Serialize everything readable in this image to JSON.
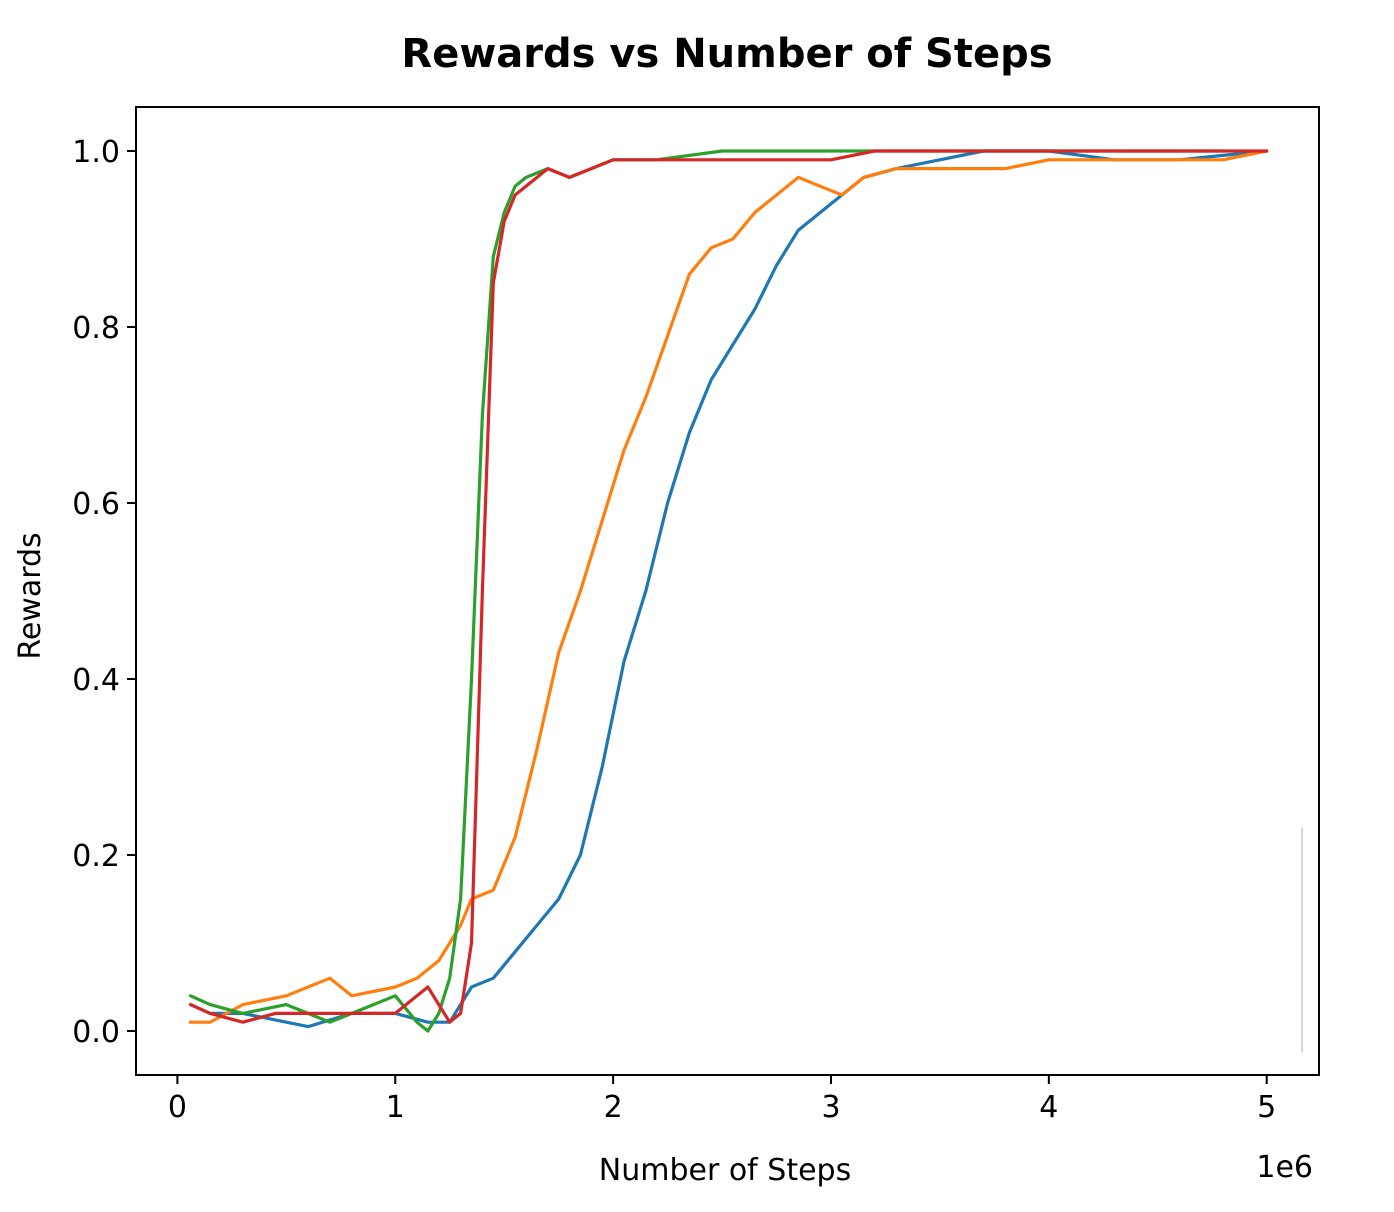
{
  "chart_data": {
    "type": "line",
    "title": "Rewards vs Number of Steps",
    "xlabel": "Number of Steps",
    "ylabel": "Rewards",
    "x_offset_label": "1e6",
    "xlim": [
      -0.19,
      5.24
    ],
    "ylim": [
      -0.05,
      1.05
    ],
    "x_ticks": [
      0,
      1,
      2,
      3,
      4,
      5
    ],
    "x_tick_labels": [
      "0",
      "1",
      "2",
      "3",
      "4",
      "5"
    ],
    "y_ticks": [
      0.0,
      0.2,
      0.4,
      0.6,
      0.8,
      1.0
    ],
    "y_tick_labels": [
      "0.0",
      "0.2",
      "0.4",
      "0.6",
      "0.8",
      "1.0"
    ],
    "grid": false,
    "legend": "none",
    "series": [
      {
        "color": "#1f77b4",
        "x": [
          0.06,
          0.15,
          0.3,
          0.5,
          0.6,
          0.8,
          1.0,
          1.15,
          1.25,
          1.3,
          1.35,
          1.45,
          1.55,
          1.65,
          1.75,
          1.85,
          1.95,
          2.05,
          2.15,
          2.25,
          2.35,
          2.45,
          2.55,
          2.65,
          2.75,
          2.85,
          2.95,
          3.05,
          3.15,
          3.3,
          3.5,
          3.7,
          4.0,
          4.3,
          4.6,
          4.8,
          5.0
        ],
        "y": [
          0.03,
          0.02,
          0.02,
          0.01,
          0.005,
          0.02,
          0.02,
          0.01,
          0.01,
          0.03,
          0.05,
          0.06,
          0.09,
          0.12,
          0.15,
          0.2,
          0.3,
          0.42,
          0.5,
          0.6,
          0.68,
          0.74,
          0.78,
          0.82,
          0.87,
          0.91,
          0.93,
          0.95,
          0.97,
          0.98,
          0.99,
          1.0,
          1.0,
          0.99,
          0.99,
          0.995,
          1.0
        ]
      },
      {
        "color": "#ff7f0e",
        "x": [
          0.06,
          0.15,
          0.3,
          0.5,
          0.7,
          0.8,
          1.0,
          1.1,
          1.2,
          1.3,
          1.35,
          1.45,
          1.55,
          1.65,
          1.75,
          1.85,
          1.95,
          2.05,
          2.15,
          2.25,
          2.35,
          2.45,
          2.55,
          2.65,
          2.75,
          2.85,
          2.95,
          3.05,
          3.15,
          3.3,
          3.5,
          3.8,
          4.0,
          4.3,
          4.6,
          4.8,
          5.0
        ],
        "y": [
          0.01,
          0.01,
          0.03,
          0.04,
          0.06,
          0.04,
          0.05,
          0.06,
          0.08,
          0.12,
          0.15,
          0.16,
          0.22,
          0.32,
          0.43,
          0.5,
          0.58,
          0.66,
          0.72,
          0.79,
          0.86,
          0.89,
          0.9,
          0.93,
          0.95,
          0.97,
          0.96,
          0.95,
          0.97,
          0.98,
          0.98,
          0.98,
          0.99,
          0.99,
          0.99,
          0.99,
          1.0
        ]
      },
      {
        "color": "#2ca02c",
        "x": [
          0.06,
          0.15,
          0.3,
          0.5,
          0.7,
          0.9,
          1.0,
          1.1,
          1.15,
          1.2,
          1.25,
          1.3,
          1.35,
          1.4,
          1.45,
          1.5,
          1.55,
          1.6,
          1.7,
          1.8,
          1.9,
          2.0,
          2.2,
          2.5,
          2.8,
          3.0,
          3.5,
          4.0,
          4.5,
          4.8
        ],
        "y": [
          0.04,
          0.03,
          0.02,
          0.03,
          0.01,
          0.03,
          0.04,
          0.01,
          0.0,
          0.02,
          0.06,
          0.15,
          0.4,
          0.7,
          0.88,
          0.93,
          0.96,
          0.97,
          0.98,
          0.97,
          0.98,
          0.99,
          0.99,
          1.0,
          1.0,
          1.0,
          1.0,
          1.0,
          1.0,
          1.0
        ]
      },
      {
        "color": "#d62728",
        "x": [
          0.06,
          0.15,
          0.3,
          0.45,
          0.6,
          0.8,
          1.0,
          1.1,
          1.15,
          1.2,
          1.25,
          1.3,
          1.35,
          1.4,
          1.45,
          1.5,
          1.55,
          1.6,
          1.7,
          1.8,
          1.9,
          2.0,
          2.3,
          2.6,
          2.9,
          3.0,
          3.2,
          3.5,
          4.0,
          4.5,
          5.0
        ],
        "y": [
          0.03,
          0.02,
          0.01,
          0.02,
          0.02,
          0.02,
          0.02,
          0.04,
          0.05,
          0.03,
          0.01,
          0.02,
          0.1,
          0.5,
          0.85,
          0.92,
          0.95,
          0.96,
          0.98,
          0.97,
          0.98,
          0.99,
          0.99,
          0.99,
          0.99,
          0.99,
          1.0,
          1.0,
          1.0,
          1.0,
          1.0
        ]
      }
    ]
  }
}
